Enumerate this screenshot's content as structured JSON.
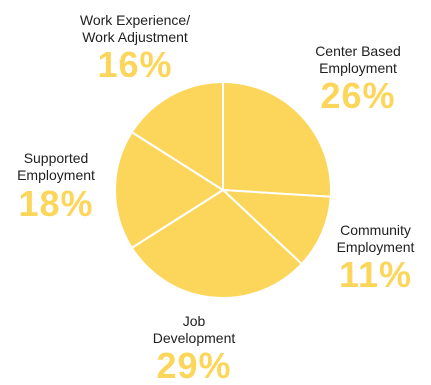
{
  "chart_data": {
    "type": "pie",
    "slice_color": "#fcd65a",
    "edge_color": "#ffffff",
    "label_color": "#1f1f1f",
    "percent_color": "#fcd65a",
    "slices": [
      {
        "name_lines": [
          "Center Based",
          "Employment"
        ],
        "value": 26,
        "pct_text": "26%"
      },
      {
        "name_lines": [
          "Community",
          "Employment"
        ],
        "value": 11,
        "pct_text": "11%"
      },
      {
        "name_lines": [
          "Job",
          "Development"
        ],
        "value": 29,
        "pct_text": "29%"
      },
      {
        "name_lines": [
          "Supported",
          "Employment"
        ],
        "value": 18,
        "pct_text": "18%"
      },
      {
        "name_lines": [
          "Work Experience/",
          "Work Adjustment"
        ],
        "value": 16,
        "pct_text": "16%"
      }
    ]
  }
}
